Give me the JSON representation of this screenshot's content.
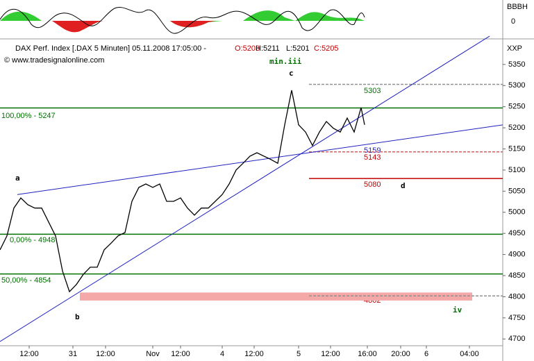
{
  "chart_data": {
    "type": "line",
    "title": "DAX Perf. Index [.DAX 5 Minuten] 05.11.2008 17:05:00 -",
    "ohlc": [
      "O:5203",
      "H:5211",
      "L:5201",
      "C:5205"
    ],
    "copyright": "© www.tradesignalonline.com",
    "wave_label": "min.iii",
    "axis_label": "XXP",
    "indicator_labels": [
      "BBBH",
      "0"
    ],
    "point_labels": [
      "a",
      "b",
      "c",
      "d",
      "iv"
    ],
    "level_texts": [
      "100,00% - 5247",
      "0,00% - 4948",
      "50,00% - 4854"
    ],
    "target_labels": [
      "5303",
      "5159",
      "5143",
      "5080",
      "4802"
    ],
    "series": [
      {
        "name": "DAX",
        "color": "#000000",
        "x": [
          0,
          2,
          4,
          6,
          8,
          10,
          12,
          14,
          16,
          18,
          20,
          22,
          24,
          26,
          28,
          30,
          32,
          34,
          36,
          38,
          40,
          42,
          44,
          46,
          48,
          50,
          52,
          54,
          56,
          58,
          60,
          62,
          64,
          66,
          68,
          70,
          72,
          74,
          76,
          78,
          80,
          82,
          84,
          86,
          88,
          90,
          92,
          94,
          96,
          98,
          100,
          102,
          104,
          105
        ],
        "values": [
          4911,
          4944,
          5010,
          5034,
          5018,
          5010,
          5010,
          4977,
          4944,
          4861,
          4812,
          4829,
          4853,
          4870,
          4870,
          4911,
          4927,
          4944,
          4952,
          5026,
          5059,
          5067,
          5059,
          5067,
          5026,
          5026,
          5034,
          5010,
          4993,
          5010,
          5010,
          5026,
          5042,
          5067,
          5100,
          5116,
          5133,
          5141,
          5133,
          5125,
          5116,
          5207,
          5289,
          5207,
          5190,
          5158,
          5190,
          5215,
          5199,
          5190,
          5223,
          5190,
          5248,
          5207
        ]
      }
    ],
    "levels": [
      {
        "value": 5247,
        "color": "#007000"
      },
      {
        "value": 4948,
        "color": "#007000"
      },
      {
        "value": 4854,
        "color": "#007000"
      }
    ],
    "dashed_levels": [
      {
        "value": 5303,
        "color": "#909090"
      },
      {
        "value": 5143,
        "color": "#d06060"
      },
      {
        "value": 5080,
        "color": "#c00000"
      },
      {
        "value": 4802,
        "color": "#909090"
      }
    ],
    "band": {
      "from": 4791,
      "to": 4810,
      "x": [
        23,
        136
      ],
      "color": "#f4a8a8"
    },
    "trendlines": [
      {
        "x": [
          5,
          144.8
        ],
        "y": [
          5042,
          5207
        ],
        "color": "#2020c0"
      },
      {
        "x": [
          0,
          141
        ],
        "y": [
          4694,
          5417
        ],
        "color": "#2020c0"
      }
    ],
    "xlim": [
      0,
      144.8
    ],
    "ylim": [
      4684,
      5404
    ],
    "yticks": [
      4700,
      4750,
      4800,
      4850,
      4900,
      4950,
      5000,
      5050,
      5100,
      5150,
      5200,
      5250,
      5300,
      5350
    ],
    "xticks": [
      {
        "value": 8.4,
        "label": "12:00"
      },
      {
        "value": 21,
        "label": "31"
      },
      {
        "value": 30.4,
        "label": "12:00"
      },
      {
        "value": 44,
        "label": "Nov"
      },
      {
        "value": 52,
        "label": "12:00"
      },
      {
        "value": 64,
        "label": "4"
      },
      {
        "value": 73.2,
        "label": "12:00"
      },
      {
        "value": 86,
        "label": "5"
      },
      {
        "value": 95.2,
        "label": "12:00"
      },
      {
        "value": 105.8,
        "label": "16:00"
      },
      {
        "value": 115.4,
        "label": "20:00"
      },
      {
        "value": 122.8,
        "label": "6"
      },
      {
        "value": 135.2,
        "label": "04:00"
      }
    ]
  }
}
